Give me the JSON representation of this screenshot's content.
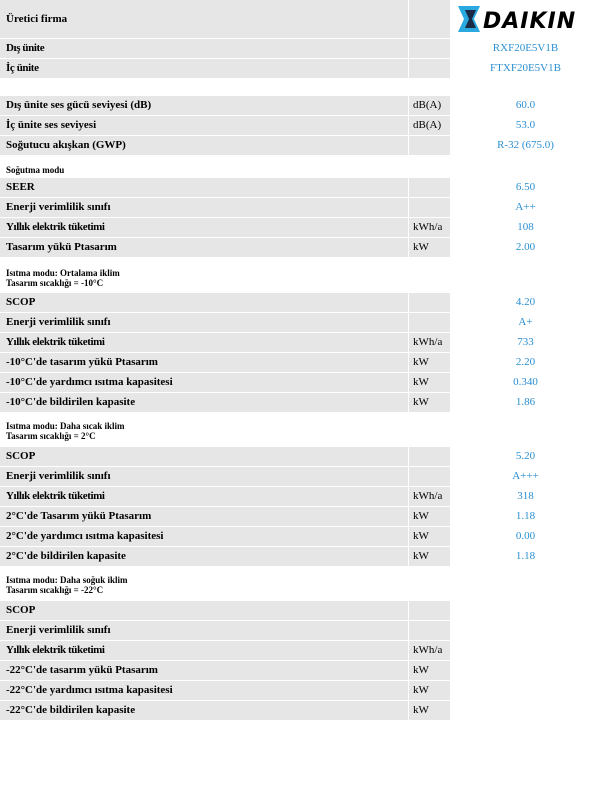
{
  "header": {
    "manufacturer_label": "Üretici firma",
    "brand": "DAIKIN"
  },
  "units_block": [
    {
      "label": "Dış ünite",
      "value": "RXF20E5V1B"
    },
    {
      "label": "İç ünite",
      "value": "FTXF20E5V1B"
    }
  ],
  "general": [
    {
      "label": "Dış ünite ses gücü seviyesi (dB)",
      "unit": "dB(A)",
      "value": "60.0"
    },
    {
      "label": "İç ünite ses seviyesi",
      "unit": "dB(A)",
      "value": "53.0"
    },
    {
      "label": "Soğutucu akışkan (GWP)",
      "unit": "",
      "value": "R-32 (675.0)"
    }
  ],
  "cooling": {
    "title": "Soğutma modu",
    "rows": [
      {
        "label": "SEER",
        "unit": "",
        "value": "6.50"
      },
      {
        "label": "Enerji verimlilik sınıfı",
        "unit": "",
        "value": "A++"
      },
      {
        "label": "Yıllık elektrik tüketimi",
        "unit": "kWh/a",
        "value": "108"
      },
      {
        "label": "Tasarım yükü Ptasarım",
        "unit": "kW",
        "value": "2.00"
      }
    ]
  },
  "heating_avg": {
    "title_line1": "Isıtma modu: Ortalama iklim",
    "title_line2": "Tasarım sıcaklığı = -10°C",
    "rows": [
      {
        "label": "SCOP",
        "unit": "",
        "value": "4.20"
      },
      {
        "label": "Enerji verimlilik sınıfı",
        "unit": "",
        "value": "A+"
      },
      {
        "label": "Yıllık elektrik tüketimi",
        "unit": "kWh/a",
        "value": "733"
      },
      {
        "label": "-10°C'de tasarım yükü Ptasarım",
        "unit": "kW",
        "value": "2.20"
      },
      {
        "label": "-10°C'de yardımcı ısıtma kapasitesi",
        "unit": "kW",
        "value": "0.340"
      },
      {
        "label": "-10°C'de bildirilen kapasite",
        "unit": "kW",
        "value": "1.86"
      }
    ]
  },
  "heating_warm": {
    "title_line1": "Isıtma modu: Daha sıcak iklim",
    "title_line2": "Tasarım sıcaklığı = 2°C",
    "rows": [
      {
        "label": "SCOP",
        "unit": "",
        "value": "5.20"
      },
      {
        "label": "Enerji verimlilik sınıfı",
        "unit": "",
        "value": "A+++"
      },
      {
        "label": "Yıllık elektrik tüketimi",
        "unit": "kWh/a",
        "value": "318"
      },
      {
        "label": "2°C'de Tasarım yükü Ptasarım",
        "unit": "kW",
        "value": "1.18"
      },
      {
        "label": "2°C'de yardımcı ısıtma kapasitesi",
        "unit": "kW",
        "value": "0.00"
      },
      {
        "label": "2°C'de bildirilen kapasite",
        "unit": "kW",
        "value": "1.18"
      }
    ]
  },
  "heating_cold": {
    "title_line1": "Isıtma modu: Daha soğuk iklim",
    "title_line2": "Tasarım sıcaklığı = -22°C",
    "rows": [
      {
        "label": "SCOP",
        "unit": "",
        "value": ""
      },
      {
        "label": "Enerji verimlilik sınıfı",
        "unit": "",
        "value": ""
      },
      {
        "label": "Yıllık elektrik tüketimi",
        "unit": "kWh/a",
        "value": ""
      },
      {
        "label": "-22°C'de tasarım yükü Ptasarım",
        "unit": "kW",
        "value": ""
      },
      {
        "label": "-22°C'de yardımcı ısıtma kapasitesi",
        "unit": "kW",
        "value": ""
      },
      {
        "label": "-22°C'de bildirilen kapasite",
        "unit": "kW",
        "value": ""
      }
    ]
  }
}
